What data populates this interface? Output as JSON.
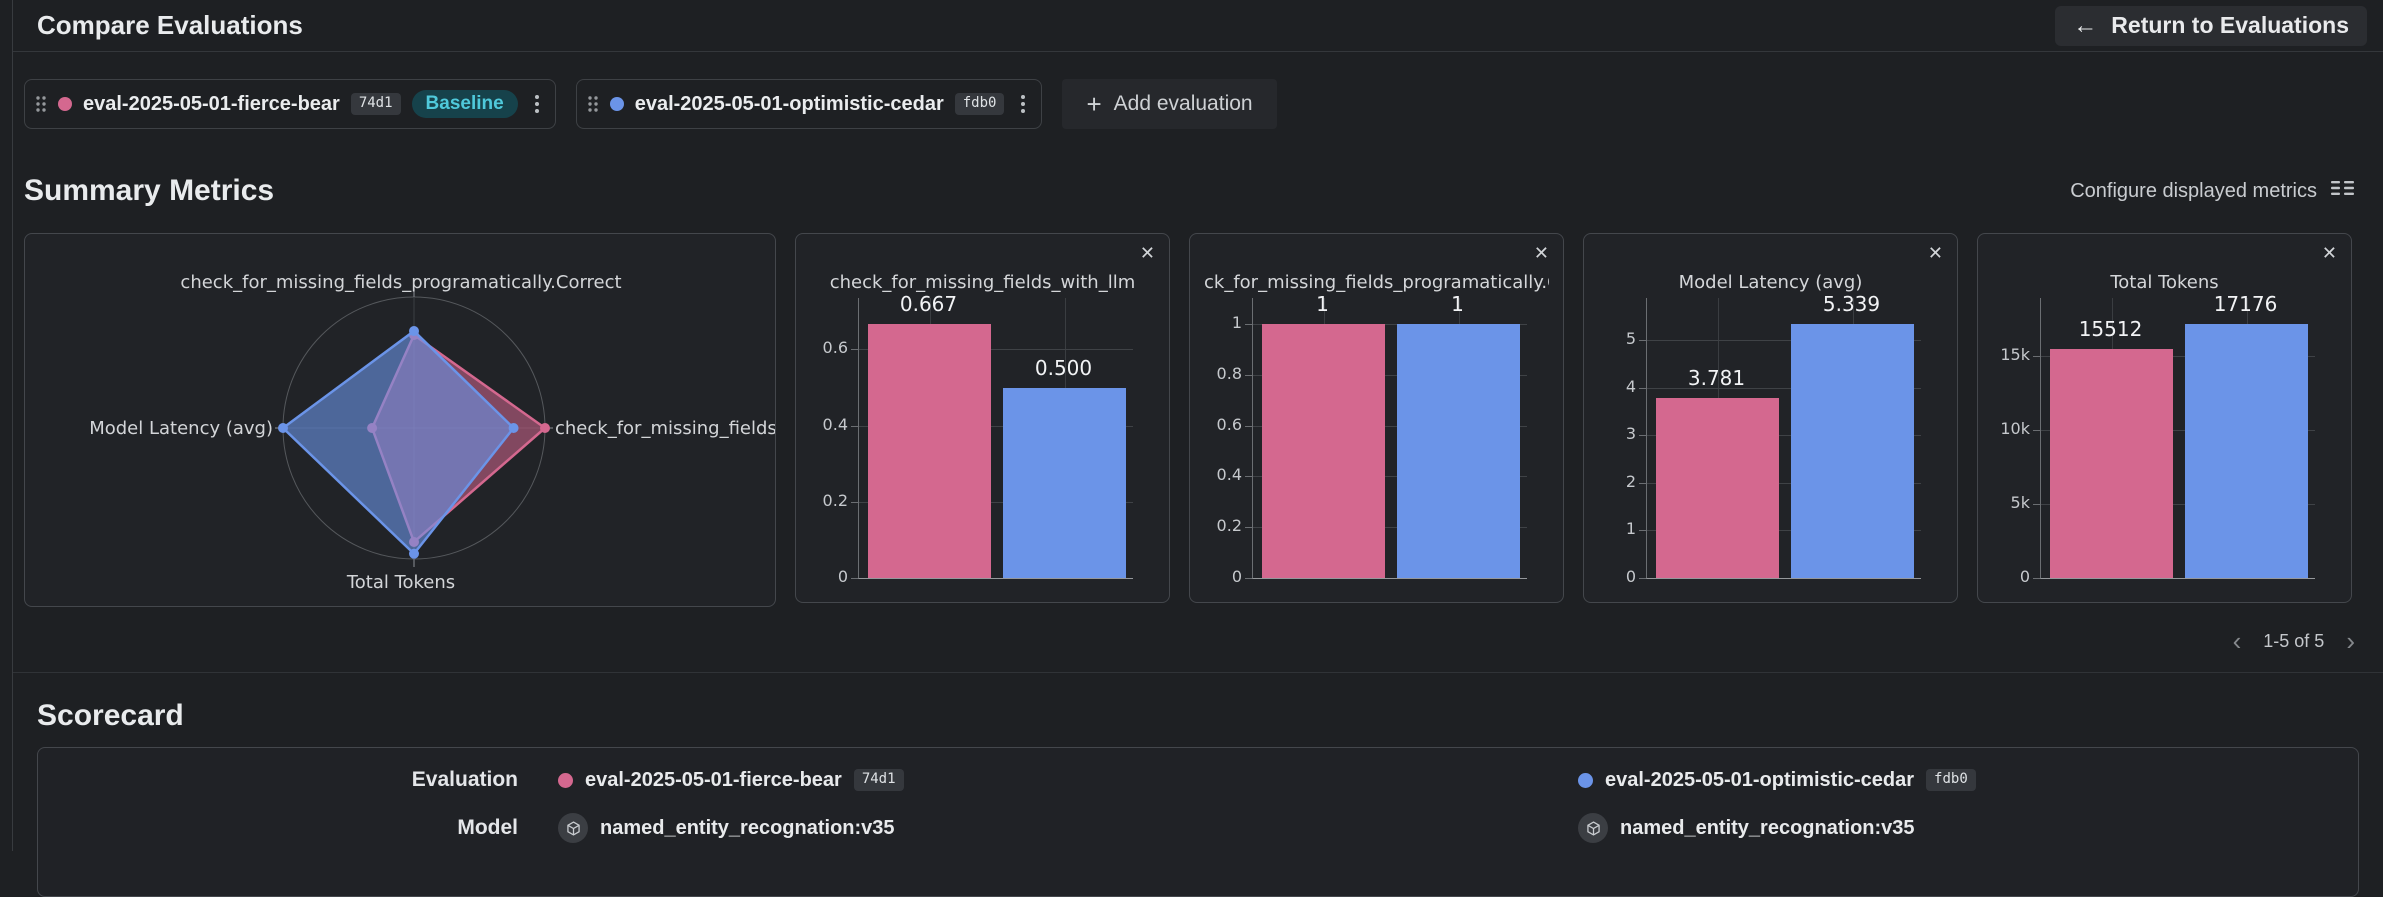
{
  "header": {
    "title": "Compare Evaluations",
    "return_button": "Return to Evaluations"
  },
  "evaluations": [
    {
      "name": "eval-2025-05-01-fierce-bear",
      "hash": "74d1",
      "color": "#d4688f",
      "baseline_label": "Baseline"
    },
    {
      "name": "eval-2025-05-01-optimistic-cedar",
      "hash": "fdb0",
      "color": "#6b94e8"
    }
  ],
  "add_evaluation_label": "Add evaluation",
  "summary": {
    "title": "Summary Metrics",
    "configure_label": "Configure displayed metrics",
    "pagination": "1-5 of 5"
  },
  "colors": {
    "baseline_series": "#d4688f",
    "comparison_series": "#6b94e8",
    "baseline_badge_bg": "#16424b",
    "baseline_badge_text": "#4fc9db"
  },
  "chart_data": [
    {
      "type": "radar",
      "axes": [
        "check_for_missing_fields_programatically.Correct",
        "check_for_missing_fields_",
        "Total Tokens",
        "Model Latency (avg)"
      ],
      "series": [
        {
          "name": "eval-2025-05-01-fierce-bear",
          "color": "#d4688f",
          "metric_values": [
            1,
            0.667,
            15512,
            3.781
          ],
          "radii": [
            0.71,
            1.0,
            0.87,
            0.32
          ]
        },
        {
          "name": "eval-2025-05-01-optimistic-cedar",
          "color": "#6b94e8",
          "metric_values": [
            1,
            0.5,
            17176,
            5.339
          ],
          "radii": [
            0.74,
            0.76,
            0.96,
            1.0
          ]
        }
      ]
    },
    {
      "type": "bar",
      "title": "check_for_missing_fields_with_llm",
      "categories": [
        "eval-2025-05-01-fierce-bear",
        "eval-2025-05-01-optimistic-cedar"
      ],
      "values": [
        0.667,
        0.5
      ],
      "value_labels": [
        "0.667",
        "0.500"
      ],
      "ymax": 0.735,
      "yticks": [
        {
          "v": 0.6,
          "label": "0.6"
        },
        {
          "v": 0.4,
          "label": "0.4"
        },
        {
          "v": 0.2,
          "label": "0.2"
        },
        {
          "v": 0,
          "label": "0"
        }
      ]
    },
    {
      "type": "bar",
      "title": "ck_for_missing_fields_programatically.C",
      "categories": [
        "eval-2025-05-01-fierce-bear",
        "eval-2025-05-01-optimistic-cedar"
      ],
      "values": [
        1,
        1
      ],
      "value_labels": [
        "1",
        "1"
      ],
      "ymax": 1.103,
      "yticks": [
        {
          "v": 1,
          "label": "1"
        },
        {
          "v": 0.8,
          "label": "0.8"
        },
        {
          "v": 0.6,
          "label": "0.6"
        },
        {
          "v": 0.4,
          "label": "0.4"
        },
        {
          "v": 0.2,
          "label": "0.2"
        },
        {
          "v": 0,
          "label": "0"
        }
      ]
    },
    {
      "type": "bar",
      "title": "Model Latency (avg)",
      "categories": [
        "eval-2025-05-01-fierce-bear",
        "eval-2025-05-01-optimistic-cedar"
      ],
      "values": [
        3.781,
        5.339
      ],
      "value_labels": [
        "3.781",
        "5.339"
      ],
      "ymax": 5.88,
      "yticks": [
        {
          "v": 5,
          "label": "5"
        },
        {
          "v": 4,
          "label": "4"
        },
        {
          "v": 3,
          "label": "3"
        },
        {
          "v": 2,
          "label": "2"
        },
        {
          "v": 1,
          "label": "1"
        },
        {
          "v": 0,
          "label": "0"
        }
      ]
    },
    {
      "type": "bar",
      "title": "Total Tokens",
      "categories": [
        "eval-2025-05-01-fierce-bear",
        "eval-2025-05-01-optimistic-cedar"
      ],
      "values": [
        15512,
        17176
      ],
      "value_labels": [
        "15512",
        "17176"
      ],
      "ymax": 18940,
      "yticks": [
        {
          "v": 15000,
          "label": "15k"
        },
        {
          "v": 10000,
          "label": "10k"
        },
        {
          "v": 5000,
          "label": "5k"
        },
        {
          "v": 0,
          "label": "0"
        }
      ]
    }
  ],
  "scorecard": {
    "title": "Scorecard",
    "row_labels": [
      "Evaluation",
      "Model"
    ],
    "columns": [
      {
        "eval_name": "eval-2025-05-01-fierce-bear",
        "eval_hash": "74d1",
        "color": "#d4688f",
        "model": "named_entity_recognation:v35"
      },
      {
        "eval_name": "eval-2025-05-01-optimistic-cedar",
        "eval_hash": "fdb0",
        "color": "#6b94e8",
        "model": "named_entity_recognation:v35"
      }
    ]
  }
}
